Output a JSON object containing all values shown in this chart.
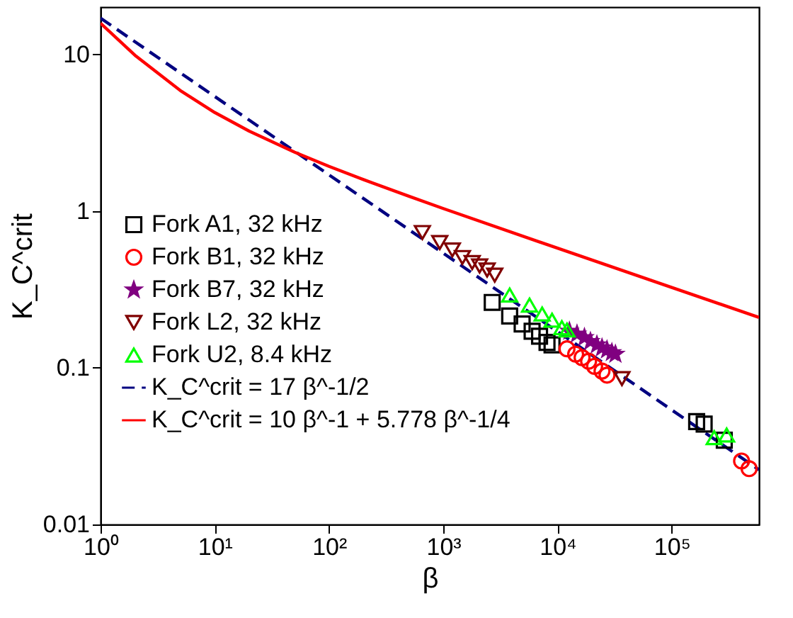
{
  "chart_data": {
    "type": "scatter",
    "xlabel": "β",
    "ylabel": "K_C^crit",
    "log": "xy",
    "xlim": [
      1,
      580000
    ],
    "ylim": [
      0.01,
      20
    ],
    "xticks": [
      {
        "value": 1,
        "label": "10⁰"
      },
      {
        "value": 10,
        "label": "10¹"
      },
      {
        "value": 100,
        "label": "10²"
      },
      {
        "value": 1000,
        "label": "10³"
      },
      {
        "value": 10000,
        "label": "10⁴"
      },
      {
        "value": 100000,
        "label": "10⁵"
      }
    ],
    "yticks": [
      0.01,
      0.1,
      1,
      10
    ],
    "grid": false,
    "legend": "left",
    "series": [
      {
        "name": "Fork A1, 32 kHz",
        "color": "#000000",
        "marker": "square",
        "x": [
          2680,
          3810,
          4900,
          5990,
          6960,
          8090,
          8950,
          165000,
          192000,
          288000
        ],
        "values": [
          0.261,
          0.214,
          0.19,
          0.171,
          0.159,
          0.145,
          0.14,
          0.0453,
          0.0437,
          0.0345
        ]
      },
      {
        "name": "Fork B1, 32 kHz",
        "color": "#ff0000",
        "marker": "circle",
        "x": [
          12100,
          14400,
          16400,
          18700,
          21100,
          24500,
          27100,
          408000,
          475000
        ],
        "values": [
          0.132,
          0.122,
          0.116,
          0.11,
          0.102,
          0.0952,
          0.0897,
          0.0254,
          0.0227
        ]
      },
      {
        "name": "Fork B7, 32 kHz",
        "color": "#800080",
        "marker": "star",
        "x": [
          12700,
          14800,
          17200,
          19400,
          22100,
          24500,
          27100,
          29900,
          32100
        ],
        "values": [
          0.171,
          0.164,
          0.156,
          0.147,
          0.14,
          0.134,
          0.13,
          0.125,
          0.122
        ]
      },
      {
        "name": "Fork L2, 32 kHz",
        "color": "#800000",
        "marker": "triangle-down",
        "x": [
          656,
          931,
          1200,
          1470,
          1790,
          2080,
          2420,
          2820,
          36600
        ],
        "values": [
          0.729,
          0.629,
          0.564,
          0.505,
          0.469,
          0.446,
          0.42,
          0.39,
          0.0853
        ]
      },
      {
        "name": "Fork U2, 8.4 kHz",
        "color": "#00ff00",
        "marker": "triangle",
        "x": [
          3810,
          5690,
          7330,
          8950,
          10900,
          12100,
          235000,
          302000
        ],
        "values": [
          0.291,
          0.251,
          0.22,
          0.201,
          0.18,
          0.174,
          0.0358,
          0.0372
        ]
      },
      {
        "name": "K_C^crit = 17 β^-1/2",
        "color": "#000080",
        "type": "line",
        "line_style": "dashed",
        "x": [
          1,
          10,
          100,
          1000,
          10000,
          100000,
          580000
        ],
        "values": [
          17,
          5.376,
          1.7,
          0.5376,
          0.17,
          0.05376,
          0.02232
        ]
      },
      {
        "name": "K_C^crit = 10 β^-1 + 5.778 β^-1/4",
        "color": "#ff0000",
        "type": "line",
        "line_style": "solid",
        "x": [
          1,
          2,
          5,
          10,
          20,
          50,
          100,
          200,
          500,
          1000,
          10000,
          100000,
          580000
        ],
        "values": [
          15.78,
          9.859,
          5.864,
          4.249,
          3.232,
          2.373,
          1.927,
          1.586,
          1.242,
          1.037,
          0.579,
          0.325,
          0.2094
        ]
      }
    ]
  }
}
